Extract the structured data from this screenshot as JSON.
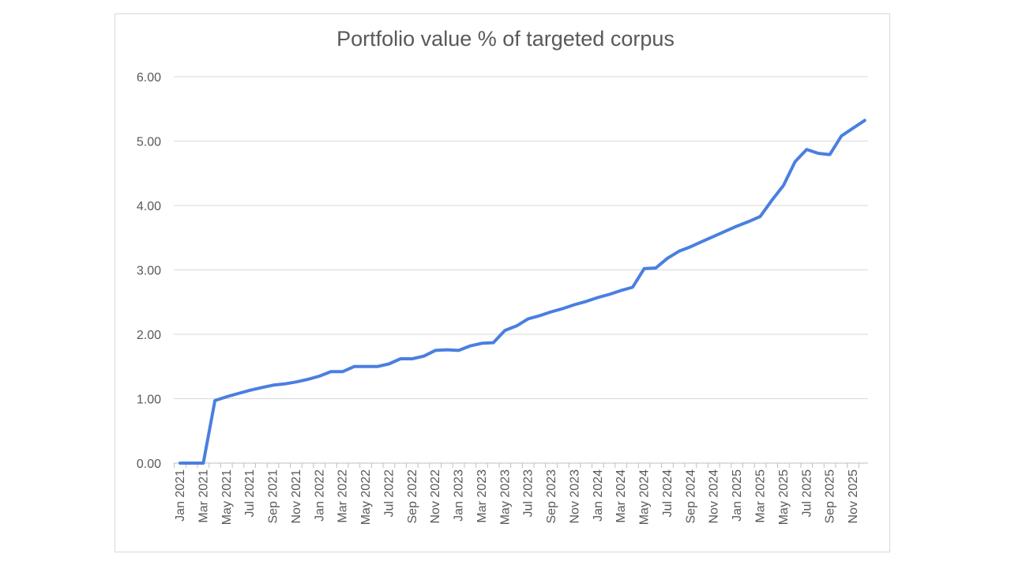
{
  "chart_data": {
    "type": "line",
    "title": "Portfolio value % of targeted corpus",
    "xlabel": "",
    "ylabel": "",
    "ylim": [
      0,
      6
    ],
    "yticks": [
      "0.00",
      "1.00",
      "2.00",
      "3.00",
      "4.00",
      "5.00",
      "6.00"
    ],
    "grid": true,
    "legend": "none",
    "line_color": "#4a7fe0",
    "x": [
      "Jan 2021",
      "Feb 2021",
      "Mar 2021",
      "Apr 2021",
      "May 2021",
      "Jun 2021",
      "Jul 2021",
      "Aug 2021",
      "Sep 2021",
      "Oct 2021",
      "Nov 2021",
      "Dec 2021",
      "Jan 2022",
      "Feb 2022",
      "Mar 2022",
      "Apr 2022",
      "May 2022",
      "Jun 2022",
      "Jul 2022",
      "Aug 2022",
      "Sep 2022",
      "Oct 2022",
      "Nov 2022",
      "Dec 2022",
      "Jan 2023",
      "Feb 2023",
      "Mar 2023",
      "Apr 2023",
      "May 2023",
      "Jun 2023",
      "Jul 2023",
      "Aug 2023",
      "Sep 2023",
      "Oct 2023",
      "Nov 2023",
      "Dec 2023",
      "Jan 2024",
      "Feb 2024",
      "Mar 2024",
      "Apr 2024",
      "May 2024",
      "Jun 2024",
      "Jul 2024",
      "Aug 2024",
      "Sep 2024",
      "Oct 2024",
      "Nov 2024",
      "Dec 2024",
      "Jan 2025",
      "Feb 2025",
      "Mar 2025",
      "Apr 2025",
      "May 2025",
      "Jun 2025",
      "Jul 2025",
      "Aug 2025",
      "Sep 2025",
      "Oct 2025",
      "Nov 2025",
      "Dec 2025"
    ],
    "xticks": [
      "Jan 2021",
      "Mar 2021",
      "May 2021",
      "Jul 2021",
      "Sep 2021",
      "Nov 2021",
      "Jan 2022",
      "Mar 2022",
      "May 2022",
      "Jul 2022",
      "Sep 2022",
      "Nov 2022",
      "Jan 2023",
      "Mar 2023",
      "May 2023",
      "Jul 2023",
      "Sep 2023",
      "Nov 2023",
      "Jan 2024",
      "Mar 2024",
      "May 2024",
      "Jul 2024",
      "Sep 2024",
      "Nov 2024",
      "Jan 2025",
      "Mar 2025",
      "May 2025",
      "Jul 2025",
      "Sep 2025",
      "Nov 2025"
    ],
    "series": [
      {
        "name": "Portfolio value %",
        "values": [
          0,
          0,
          0,
          0.97,
          1.03,
          1.08,
          1.13,
          1.17,
          1.21,
          1.23,
          1.26,
          1.3,
          1.35,
          1.42,
          1.42,
          1.5,
          1.5,
          1.5,
          1.54,
          1.62,
          1.62,
          1.66,
          1.75,
          1.76,
          1.75,
          1.82,
          1.86,
          1.87,
          2.06,
          2.13,
          2.24,
          2.29,
          2.35,
          2.4,
          2.46,
          2.51,
          2.57,
          2.62,
          2.68,
          2.73,
          3.02,
          3.03,
          3.18,
          3.29,
          3.36,
          3.44,
          3.52,
          3.6,
          3.68,
          3.75,
          3.83,
          4.08,
          4.31,
          4.68,
          4.87,
          4.81,
          4.79,
          5.08,
          5.2,
          5.32
        ]
      }
    ]
  }
}
